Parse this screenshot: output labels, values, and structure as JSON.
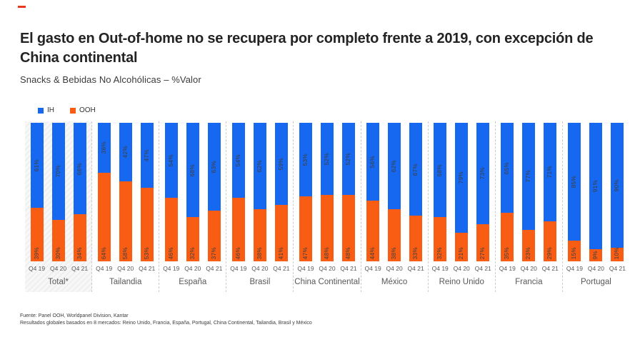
{
  "page": {
    "title": "El gasto en Out-of-home no se recupera por completo frente a 2019, con excepción de China continental",
    "subtitle": "Snacks & Bebidas No Alcohólicas – %Valor"
  },
  "legend": {
    "items": [
      {
        "label": "IH",
        "color": "#1668f0"
      },
      {
        "label": "OOH",
        "color": "#f95d13"
      }
    ]
  },
  "chart_data": {
    "type": "bar",
    "stacked": true,
    "unit": "%",
    "ylim": [
      0,
      100
    ],
    "grid": false,
    "legend_position": "top-left",
    "quarters": [
      "Q4 19",
      "Q4 20",
      "Q4 21"
    ],
    "series_names": [
      "IH",
      "OOH"
    ],
    "colors": {
      "IH": "#1668f0",
      "OOH": "#f95d13"
    },
    "groups": [
      {
        "label": "Total*",
        "highlight": true,
        "IH": [
          61,
          70,
          66
        ],
        "OOH": [
          39,
          30,
          34
        ]
      },
      {
        "label": "Tailandia",
        "highlight": false,
        "IH": [
          36,
          42,
          47
        ],
        "OOH": [
          64,
          58,
          53
        ]
      },
      {
        "label": "España",
        "highlight": false,
        "IH": [
          54,
          68,
          63
        ],
        "OOH": [
          46,
          32,
          37
        ]
      },
      {
        "label": "Brasil",
        "highlight": false,
        "IH": [
          54,
          62,
          59
        ],
        "OOH": [
          46,
          38,
          41
        ]
      },
      {
        "label": "China Continental",
        "highlight": false,
        "IH": [
          53,
          52,
          52
        ],
        "OOH": [
          47,
          48,
          48
        ]
      },
      {
        "label": "México",
        "highlight": false,
        "IH": [
          56,
          62,
          67
        ],
        "OOH": [
          44,
          38,
          33
        ]
      },
      {
        "label": "Reino Unido",
        "highlight": false,
        "IH": [
          68,
          79,
          73
        ],
        "OOH": [
          32,
          21,
          27
        ]
      },
      {
        "label": "Francia",
        "highlight": false,
        "IH": [
          65,
          77,
          71
        ],
        "OOH": [
          35,
          23,
          29
        ]
      },
      {
        "label": "Portugal",
        "highlight": false,
        "IH": [
          85,
          91,
          90
        ],
        "OOH": [
          15,
          9,
          10
        ]
      }
    ]
  },
  "footer": {
    "line1": "Fuente: Panel OOH, Worldpanel Division, Kantar",
    "line2": "Resultados globales basados en 8 mercados: Reino Unido, Francia, España, Portugal, China Continental, Tailandia, Brasil y México"
  }
}
